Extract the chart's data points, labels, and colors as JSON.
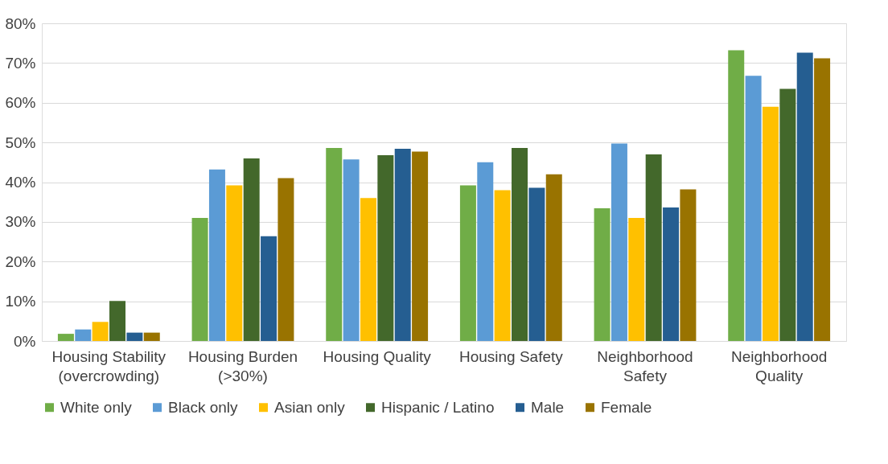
{
  "chart_data": {
    "type": "bar",
    "categories": [
      "Housing Stability (overcrowding)",
      "Housing Burden (>30%)",
      "Housing Quality",
      "Housing Safety",
      "Neighborhood Safety",
      "Neighborhood Quality"
    ],
    "series": [
      {
        "name": "White only",
        "color": "#70ad47",
        "values": [
          1.8,
          31.0,
          48.6,
          39.2,
          33.4,
          73.2
        ]
      },
      {
        "name": "Black only",
        "color": "#5b9bd5",
        "values": [
          2.9,
          43.2,
          45.7,
          45.0,
          49.7,
          66.8
        ]
      },
      {
        "name": "Asian only",
        "color": "#ffc000",
        "values": [
          4.8,
          39.2,
          36.0,
          38.0,
          31.0,
          59.0
        ]
      },
      {
        "name": "Hispanic / Latino",
        "color": "#43682b",
        "values": [
          10.1,
          46.0,
          46.8,
          48.6,
          47.0,
          63.5
        ]
      },
      {
        "name": "Male",
        "color": "#255e91",
        "values": [
          2.1,
          26.4,
          48.4,
          38.6,
          33.6,
          72.6
        ]
      },
      {
        "name": "Female",
        "color": "#997300",
        "values": [
          2.1,
          41.0,
          47.7,
          42.0,
          38.2,
          71.2
        ]
      }
    ],
    "ylim": [
      0,
      80
    ],
    "yticks": [
      {
        "value": 0,
        "label": "0%"
      },
      {
        "value": 10,
        "label": "10%"
      },
      {
        "value": 20,
        "label": "20%"
      },
      {
        "value": 30,
        "label": "30%"
      },
      {
        "value": 40,
        "label": "40%"
      },
      {
        "value": 50,
        "label": "50%"
      },
      {
        "value": 60,
        "label": "60%"
      },
      {
        "value": 70,
        "label": "70%"
      },
      {
        "value": 80,
        "label": "80%"
      }
    ],
    "grid": "y",
    "legend": "bottom"
  }
}
